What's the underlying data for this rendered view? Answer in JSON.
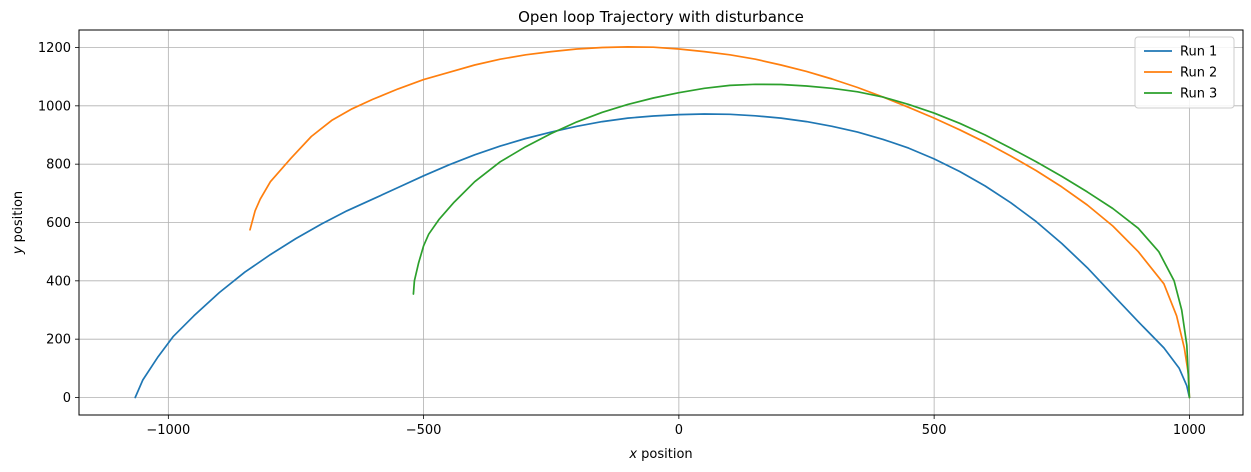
{
  "chart_data": {
    "type": "line",
    "title": "Open loop Trajectory with disturbance",
    "xlabel_var": "x",
    "xlabel_rest": " position",
    "ylabel_var": "y",
    "ylabel_rest": " position",
    "xlim": [
      -1175,
      1105
    ],
    "ylim": [
      -60,
      1260
    ],
    "xticks": [
      -1000,
      -500,
      0,
      500,
      1000
    ],
    "xtick_labels": [
      "−1000",
      "−500",
      "0",
      "500",
      "1000"
    ],
    "yticks": [
      0,
      200,
      400,
      600,
      800,
      1000,
      1200
    ],
    "ytick_labels": [
      "0",
      "200",
      "400",
      "600",
      "800",
      "1000",
      "1200"
    ],
    "grid": true,
    "legend_position": "top-right",
    "series": [
      {
        "name": "Run 1",
        "color": "#1f77b4",
        "points": [
          [
            -1065,
            0
          ],
          [
            -1050,
            60
          ],
          [
            -1020,
            140
          ],
          [
            -990,
            210
          ],
          [
            -950,
            280
          ],
          [
            -900,
            360
          ],
          [
            -850,
            430
          ],
          [
            -800,
            490
          ],
          [
            -750,
            545
          ],
          [
            -700,
            595
          ],
          [
            -650,
            640
          ],
          [
            -600,
            680
          ],
          [
            -550,
            720
          ],
          [
            -500,
            760
          ],
          [
            -450,
            798
          ],
          [
            -400,
            832
          ],
          [
            -350,
            862
          ],
          [
            -300,
            888
          ],
          [
            -250,
            910
          ],
          [
            -200,
            930
          ],
          [
            -150,
            946
          ],
          [
            -100,
            958
          ],
          [
            -50,
            965
          ],
          [
            0,
            970
          ],
          [
            50,
            972
          ],
          [
            100,
            971
          ],
          [
            150,
            966
          ],
          [
            200,
            958
          ],
          [
            250,
            946
          ],
          [
            300,
            930
          ],
          [
            350,
            910
          ],
          [
            400,
            885
          ],
          [
            450,
            855
          ],
          [
            500,
            818
          ],
          [
            550,
            775
          ],
          [
            600,
            725
          ],
          [
            650,
            668
          ],
          [
            700,
            603
          ],
          [
            750,
            528
          ],
          [
            800,
            445
          ],
          [
            850,
            352
          ],
          [
            900,
            260
          ],
          [
            950,
            170
          ],
          [
            980,
            100
          ],
          [
            995,
            40
          ],
          [
            1000,
            0
          ]
        ]
      },
      {
        "name": "Run 2",
        "color": "#ff7f0e",
        "points": [
          [
            -840,
            575
          ],
          [
            -830,
            640
          ],
          [
            -820,
            680
          ],
          [
            -800,
            740
          ],
          [
            -760,
            820
          ],
          [
            -720,
            895
          ],
          [
            -680,
            950
          ],
          [
            -640,
            990
          ],
          [
            -600,
            1022
          ],
          [
            -550,
            1058
          ],
          [
            -500,
            1090
          ],
          [
            -450,
            1115
          ],
          [
            -400,
            1140
          ],
          [
            -350,
            1160
          ],
          [
            -300,
            1175
          ],
          [
            -250,
            1186
          ],
          [
            -200,
            1195
          ],
          [
            -150,
            1200
          ],
          [
            -100,
            1202
          ],
          [
            -50,
            1201
          ],
          [
            0,
            1195
          ],
          [
            50,
            1186
          ],
          [
            100,
            1175
          ],
          [
            150,
            1160
          ],
          [
            200,
            1140
          ],
          [
            250,
            1118
          ],
          [
            300,
            1092
          ],
          [
            350,
            1063
          ],
          [
            400,
            1030
          ],
          [
            450,
            995
          ],
          [
            500,
            958
          ],
          [
            550,
            918
          ],
          [
            600,
            875
          ],
          [
            650,
            828
          ],
          [
            700,
            778
          ],
          [
            750,
            722
          ],
          [
            800,
            660
          ],
          [
            850,
            588
          ],
          [
            900,
            500
          ],
          [
            950,
            390
          ],
          [
            975,
            280
          ],
          [
            990,
            170
          ],
          [
            998,
            80
          ],
          [
            1000,
            0
          ]
        ]
      },
      {
        "name": "Run 3",
        "color": "#2ca02c",
        "points": [
          [
            -520,
            355
          ],
          [
            -518,
            400
          ],
          [
            -510,
            460
          ],
          [
            -500,
            520
          ],
          [
            -490,
            560
          ],
          [
            -470,
            610
          ],
          [
            -440,
            670
          ],
          [
            -400,
            740
          ],
          [
            -350,
            808
          ],
          [
            -300,
            860
          ],
          [
            -250,
            905
          ],
          [
            -200,
            945
          ],
          [
            -150,
            978
          ],
          [
            -100,
            1005
          ],
          [
            -50,
            1027
          ],
          [
            0,
            1045
          ],
          [
            50,
            1060
          ],
          [
            100,
            1070
          ],
          [
            150,
            1074
          ],
          [
            200,
            1073
          ],
          [
            250,
            1068
          ],
          [
            300,
            1060
          ],
          [
            350,
            1048
          ],
          [
            400,
            1030
          ],
          [
            450,
            1005
          ],
          [
            500,
            975
          ],
          [
            550,
            940
          ],
          [
            600,
            900
          ],
          [
            650,
            855
          ],
          [
            700,
            808
          ],
          [
            750,
            758
          ],
          [
            800,
            705
          ],
          [
            850,
            648
          ],
          [
            900,
            580
          ],
          [
            940,
            500
          ],
          [
            970,
            400
          ],
          [
            985,
            300
          ],
          [
            995,
            180
          ],
          [
            1000,
            0
          ]
        ]
      }
    ]
  }
}
